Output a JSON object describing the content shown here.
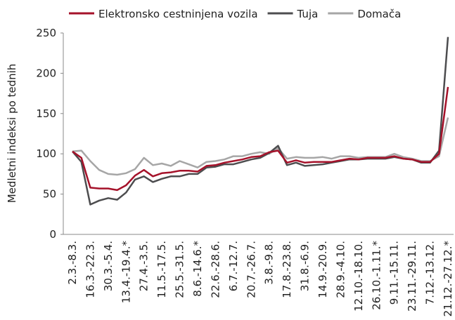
{
  "chart_data": {
    "type": "line",
    "y_label": "Medletni indeksi po tednih",
    "categories": [
      "2.3.-8.3.",
      null,
      "16.3.-22.3.",
      null,
      "30.3.-5.4.",
      null,
      "13.4.-19.4.*",
      null,
      "27.4.-3.5.",
      null,
      "11.5.-17.5.",
      null,
      "25.5.-31.5.",
      null,
      "8.6.-14.6.*",
      null,
      "22.6.-28.6.",
      null,
      "6.7.-12.7.",
      null,
      "20.7.-26.7.",
      null,
      "3.8.-9.8.",
      null,
      "17.8.-23.8.",
      null,
      "31.8.-6.9.",
      null,
      "14.9.-20.9.",
      null,
      "28.9.-4.10.",
      null,
      "12.10.-18.10.",
      null,
      "26.10.-1.11.*",
      null,
      "9.11.-15.11.",
      null,
      "23.11.-29.11.",
      null,
      "7.12.-13.12.",
      null,
      "21.12.-27.12.*"
    ],
    "series": [
      {
        "name": "Elektronsko cestninjena vozila",
        "color": "#a5122a",
        "values": [
          103,
          95,
          58,
          57,
          57,
          55,
          61,
          73,
          80,
          72,
          76,
          77,
          79,
          79,
          78,
          85,
          86,
          89,
          91,
          93,
          96,
          97,
          102,
          104,
          89,
          92,
          89,
          90,
          90,
          90,
          92,
          94,
          93,
          95,
          95,
          95,
          97,
          94,
          93,
          90,
          90,
          100,
          183
        ]
      },
      {
        "name": "Tuja",
        "color": "#4d4d4f",
        "values": [
          103,
          90,
          37,
          42,
          45,
          43,
          52,
          68,
          72,
          65,
          69,
          72,
          72,
          75,
          75,
          83,
          84,
          87,
          87,
          90,
          93,
          95,
          101,
          110,
          86,
          89,
          85,
          86,
          87,
          89,
          91,
          93,
          93,
          94,
          94,
          94,
          96,
          94,
          93,
          89,
          89,
          104,
          245
        ]
      },
      {
        "name": "Domača",
        "color": "#a6a6a6",
        "values": [
          103,
          104,
          91,
          80,
          75,
          74,
          76,
          81,
          95,
          86,
          88,
          85,
          91,
          87,
          83,
          90,
          91,
          93,
          97,
          97,
          100,
          102,
          100,
          107,
          94,
          96,
          95,
          95,
          96,
          94,
          97,
          97,
          95,
          96,
          96,
          96,
          100,
          96,
          94,
          91,
          91,
          97,
          145
        ]
      }
    ],
    "ylim": [
      0,
      250
    ],
    "yticks": [
      0,
      50,
      100,
      150,
      200,
      250
    ],
    "grid": false,
    "legend": "top"
  }
}
